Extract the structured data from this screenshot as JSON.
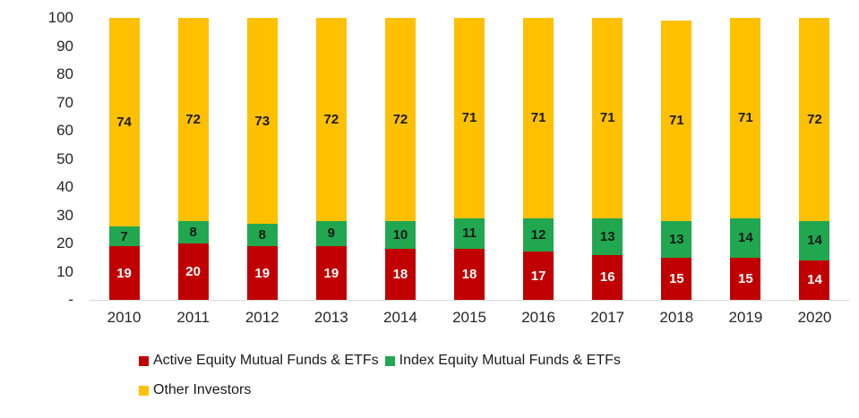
{
  "chart_data": {
    "type": "bar",
    "stacked": true,
    "title": "",
    "xlabel": "",
    "ylabel": "",
    "background_color": "#FFFFFF",
    "axis_line_color": "#D9D9D9",
    "axis_text_color": "#262626",
    "categories": [
      "2010",
      "2011",
      "2012",
      "2013",
      "2014",
      "2015",
      "2016",
      "2017",
      "2018",
      "2019",
      "2020"
    ],
    "series": [
      {
        "name": "Active Equity Mutual Funds & ETFs",
        "color": "#C00000",
        "label_color": "#FFFFFF",
        "values": [
          19,
          20,
          19,
          19,
          18,
          18,
          17,
          16,
          15,
          15,
          14
        ]
      },
      {
        "name": "Index Equity Mutual Funds & ETFs",
        "color": "#21A74F",
        "label_color": "#1A1A1A",
        "values": [
          7,
          8,
          8,
          9,
          10,
          11,
          12,
          13,
          13,
          14,
          14
        ]
      },
      {
        "name": "Other Investors",
        "color": "#FFC000",
        "label_color": "#1A1A1A",
        "values": [
          74,
          72,
          73,
          72,
          72,
          71,
          71,
          71,
          71,
          71,
          72
        ]
      }
    ],
    "y_axis": {
      "tick_labels": [
        "100",
        "90",
        "80",
        "70",
        "60",
        "50",
        "40",
        "30",
        "20",
        "10",
        "-"
      ],
      "tick_values": [
        100,
        90,
        80,
        70,
        60,
        50,
        40,
        30,
        20,
        10,
        0
      ],
      "min": 0,
      "max": 100,
      "grid": false
    },
    "legend": {
      "position": "bottom-left",
      "rows": [
        [
          0,
          1
        ],
        [
          2
        ]
      ]
    }
  }
}
